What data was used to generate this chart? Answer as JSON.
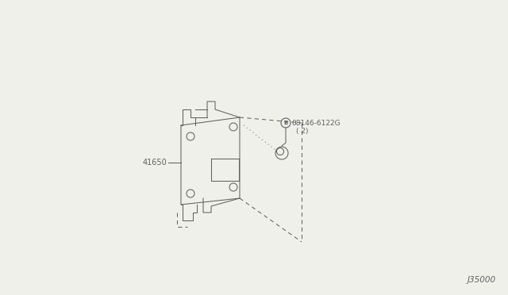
{
  "bg_color": "#f0f0eb",
  "line_color": "#606060",
  "title_code": "J35000",
  "part_41650_label": "41650",
  "part_screw_label": "08146-6122G",
  "part_screw_qty": "( 2)",
  "fig_width": 6.4,
  "fig_height": 3.72,
  "dpi": 100,
  "scale": 1.0
}
